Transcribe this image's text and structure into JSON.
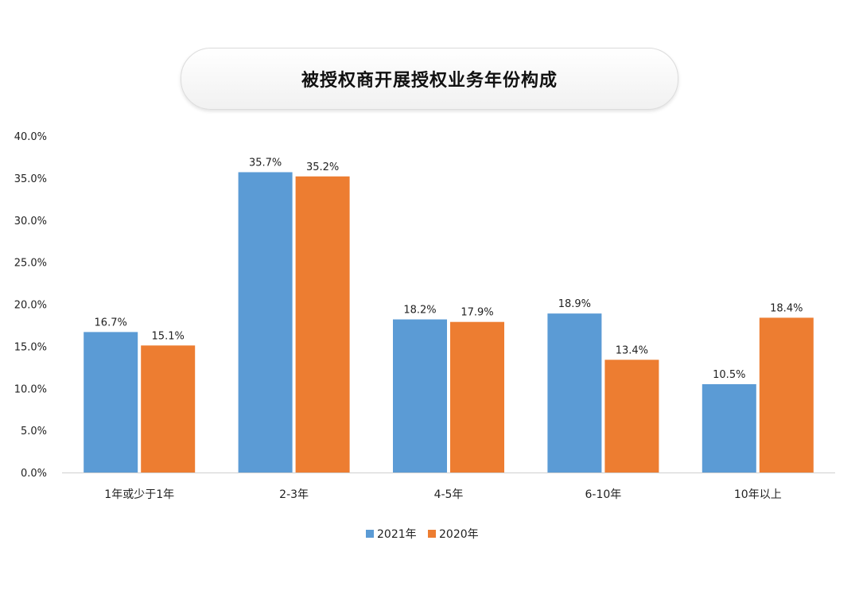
{
  "chart_data": {
    "type": "bar",
    "title": "被授权商开展授权业务年份构成",
    "categories": [
      "1年或少于1年",
      "2-3年",
      "4-5年",
      "6-10年",
      "10年以上"
    ],
    "series": [
      {
        "name": "2021年",
        "color": "#5b9bd5",
        "values": [
          16.7,
          35.7,
          18.2,
          18.9,
          10.5
        ],
        "labels": [
          "16.7%",
          "35.7%",
          "18.2%",
          "18.9%",
          "10.5%"
        ]
      },
      {
        "name": "2020年",
        "color": "#ed7d31",
        "values": [
          15.1,
          35.2,
          17.9,
          13.4,
          18.4
        ],
        "labels": [
          "15.1%",
          "35.2%",
          "17.9%",
          "13.4%",
          "18.4%"
        ]
      }
    ],
    "ylim": [
      0,
      40
    ],
    "yticks": [
      0,
      5,
      10,
      15,
      20,
      25,
      30,
      35,
      40
    ],
    "ytick_labels": [
      "0.0%",
      "5.0%",
      "10.0%",
      "15.0%",
      "20.0%",
      "25.0%",
      "30.0%",
      "35.0%",
      "40.0%"
    ],
    "grid": false,
    "legend_position": "bottom"
  }
}
